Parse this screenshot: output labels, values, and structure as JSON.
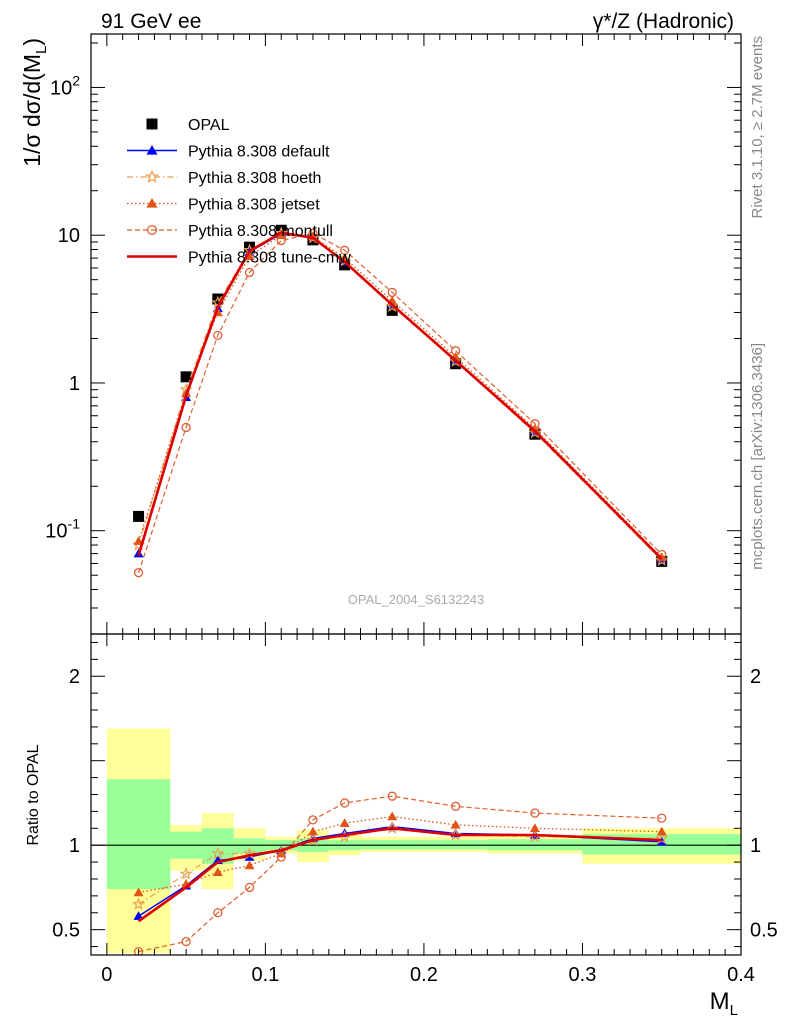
{
  "header": {
    "left_title": "91 GeV ee",
    "right_title": "γ*/Z (Hadronic)"
  },
  "side_labels": {
    "rivet": "Rivet 3.1.10, ≥ 2.7M events",
    "mcplots": "mcplots.cern.ch [arXiv:1306.3436]"
  },
  "watermark": "OPAL_2004_S6132243",
  "chart_data": [
    {
      "type": "line",
      "panel": "main",
      "ylabel": "1/σ dσ/d(M_L)",
      "yscale": "log",
      "ylim": [
        0.02,
        230
      ],
      "xlim": [
        -0.01,
        0.4
      ],
      "y_ticks": [
        {
          "value": 0.1,
          "label": "10^-1"
        },
        {
          "value": 1,
          "label": "1"
        },
        {
          "value": 10,
          "label": "10"
        },
        {
          "value": 100,
          "label": "10^2"
        }
      ],
      "x": [
        0.02,
        0.05,
        0.07,
        0.09,
        0.11,
        0.13,
        0.15,
        0.18,
        0.22,
        0.27,
        0.35
      ],
      "data_series": {
        "name": "OPAL",
        "marker": "square",
        "color": "#000000",
        "values": [
          0.125,
          1.1,
          3.7,
          8.3,
          10.8,
          9.3,
          6.3,
          3.1,
          1.35,
          0.45,
          0.062
        ]
      },
      "series": [
        {
          "name": "Pythia 8.308 default",
          "color": "#0000ff",
          "marker": "triangle",
          "line": "solid",
          "values": [
            0.07,
            0.8,
            3.2,
            7.7,
            10.2,
            9.7,
            6.6,
            3.4,
            1.4,
            0.47,
            0.064
          ]
        },
        {
          "name": "Pythia 8.308 hoeth",
          "color": "#e8a050",
          "marker": "star",
          "line": "dashdot",
          "values": [
            0.08,
            0.9,
            3.5,
            7.9,
            10.3,
            9.6,
            6.7,
            3.3,
            1.4,
            0.46,
            0.063
          ]
        },
        {
          "name": "Pythia 8.308 jetset",
          "color": "#e05515",
          "marker": "triangle",
          "line": "dotted",
          "values": [
            0.085,
            0.85,
            3.0,
            7.2,
            10.0,
            9.8,
            7.0,
            3.6,
            1.5,
            0.49,
            0.066
          ]
        },
        {
          "name": "Pythia 8.308 montull",
          "color": "#e06030",
          "marker": "circle-open",
          "line": "dashed",
          "values": [
            0.052,
            0.5,
            2.1,
            5.6,
            9.2,
            10.3,
            7.9,
            4.1,
            1.65,
            0.53,
            0.069
          ]
        },
        {
          "name": "Pythia 8.308 tune-cmw",
          "color": "#dd0000",
          "marker": "none",
          "line": "solid-thick",
          "values": [
            0.068,
            0.82,
            3.25,
            7.8,
            10.4,
            9.6,
            6.6,
            3.38,
            1.42,
            0.472,
            0.0645
          ]
        }
      ]
    },
    {
      "type": "line",
      "panel": "ratio",
      "ylabel": "Ratio to OPAL",
      "xlabel": "M_L",
      "ylim": [
        0.35,
        2.25
      ],
      "xlim": [
        -0.01,
        0.4
      ],
      "y_ticks": [
        {
          "value": 0.5,
          "label": "0.5"
        },
        {
          "value": 1,
          "label": "1"
        },
        {
          "value": 2,
          "label": "2"
        }
      ],
      "x_ticks": [
        {
          "value": 0,
          "label": "0"
        },
        {
          "value": 0.1,
          "label": "0.1"
        },
        {
          "value": 0.2,
          "label": "0.2"
        },
        {
          "value": 0.3,
          "label": "0.3"
        },
        {
          "value": 0.4,
          "label": "0.4"
        }
      ],
      "x": [
        0.02,
        0.05,
        0.07,
        0.09,
        0.11,
        0.13,
        0.15,
        0.18,
        0.22,
        0.27,
        0.35
      ],
      "bands": [
        {
          "x0": 0.0,
          "x1": 0.04,
          "inner": [
            0.74,
            1.39
          ],
          "outer": [
            0.36,
            1.69
          ]
        },
        {
          "x0": 0.04,
          "x1": 0.06,
          "inner": [
            0.92,
            1.08
          ],
          "outer": [
            0.85,
            1.12
          ]
        },
        {
          "x0": 0.06,
          "x1": 0.08,
          "inner": [
            0.89,
            1.1
          ],
          "outer": [
            0.74,
            1.19
          ]
        },
        {
          "x0": 0.08,
          "x1": 0.1,
          "inner": [
            0.95,
            1.04
          ],
          "outer": [
            0.91,
            1.1
          ]
        },
        {
          "x0": 0.1,
          "x1": 0.12,
          "inner": [
            0.97,
            1.03
          ],
          "outer": [
            0.95,
            1.05
          ]
        },
        {
          "x0": 0.12,
          "x1": 0.14,
          "inner": [
            0.96,
            1.04
          ],
          "outer": [
            0.9,
            1.09
          ]
        },
        {
          "x0": 0.14,
          "x1": 0.16,
          "inner": [
            0.97,
            1.03
          ],
          "outer": [
            0.94,
            1.06
          ]
        },
        {
          "x0": 0.16,
          "x1": 0.2,
          "inner": [
            0.975,
            1.03
          ],
          "outer": [
            0.96,
            1.05
          ]
        },
        {
          "x0": 0.2,
          "x1": 0.24,
          "inner": [
            0.975,
            1.03
          ],
          "outer": [
            0.96,
            1.05
          ]
        },
        {
          "x0": 0.24,
          "x1": 0.3,
          "inner": [
            0.97,
            1.035
          ],
          "outer": [
            0.95,
            1.06
          ]
        },
        {
          "x0": 0.3,
          "x1": 0.4,
          "inner": [
            0.945,
            1.065
          ],
          "outer": [
            0.89,
            1.1
          ]
        }
      ],
      "series": [
        {
          "name": "Pythia 8.308 default",
          "color": "#0000ff",
          "marker": "triangle",
          "line": "solid",
          "values": [
            0.58,
            0.76,
            0.91,
            0.93,
            0.97,
            1.04,
            1.07,
            1.11,
            1.07,
            1.06,
            1.02
          ]
        },
        {
          "name": "Pythia 8.308 hoeth",
          "color": "#e8a050",
          "marker": "star",
          "line": "dashdot",
          "values": [
            0.65,
            0.83,
            0.95,
            0.95,
            0.96,
            1.03,
            1.05,
            1.1,
            1.06,
            1.05,
            1.04
          ]
        },
        {
          "name": "Pythia 8.308 jetset",
          "color": "#e05515",
          "marker": "triangle",
          "line": "dotted",
          "values": [
            0.72,
            0.77,
            0.84,
            0.88,
            0.95,
            1.08,
            1.13,
            1.17,
            1.12,
            1.1,
            1.08
          ]
        },
        {
          "name": "Pythia 8.308 montull",
          "color": "#e06030",
          "marker": "circle-open",
          "line": "dashed",
          "values": [
            0.37,
            0.43,
            0.6,
            0.75,
            0.93,
            1.15,
            1.25,
            1.29,
            1.23,
            1.19,
            1.16
          ]
        },
        {
          "name": "Pythia 8.308 tune-cmw",
          "color": "#dd0000",
          "marker": "none",
          "line": "solid-thick",
          "values": [
            0.55,
            0.75,
            0.9,
            0.94,
            0.97,
            1.03,
            1.06,
            1.1,
            1.06,
            1.06,
            1.03
          ]
        }
      ]
    }
  ]
}
